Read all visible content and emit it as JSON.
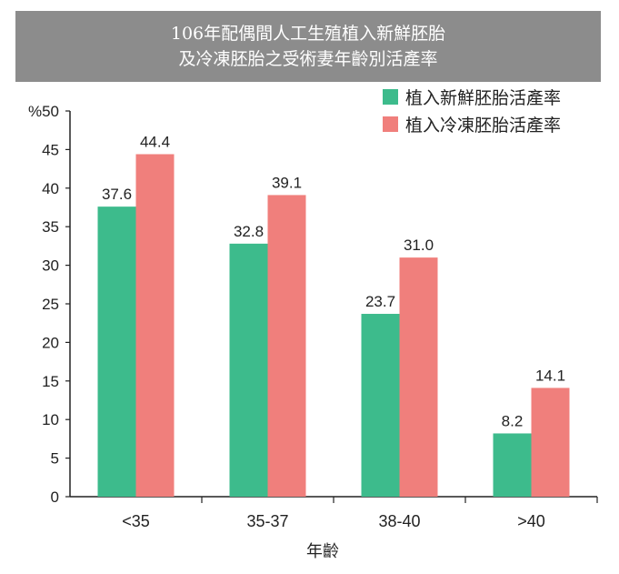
{
  "title": {
    "line1": "106年配偶間人工生殖植入新鮮胚胎",
    "line2": "及冷凍胚胎之受術妻年齡別活產率"
  },
  "colors": {
    "title_bg": "#8c8c8c",
    "fresh": "#3dbb8c",
    "frozen": "#f07f7c"
  },
  "chart_data": {
    "type": "bar",
    "title": "106年配偶間人工生殖植入新鮮胚胎及冷凍胚胎之受術妻年齡別活產率",
    "xlabel": "年齡",
    "ylabel": "%",
    "ylim": [
      0,
      50
    ],
    "yticks": [
      0,
      5,
      10,
      15,
      20,
      25,
      30,
      35,
      40,
      45,
      50
    ],
    "ytick_labels": [
      "0",
      "5",
      "10",
      "15",
      "20",
      "25",
      "30",
      "35",
      "40",
      "45",
      "%50"
    ],
    "categories": [
      "<35",
      "35-37",
      "38-40",
      ">40"
    ],
    "series": [
      {
        "name": "植入新鮮胚胎活產率",
        "values": [
          37.6,
          32.8,
          23.7,
          8.2
        ],
        "labels": [
          "37.6",
          "32.8",
          "23.7",
          "8.2"
        ]
      },
      {
        "name": "植入冷凍胚胎活產率",
        "values": [
          44.4,
          39.1,
          31.0,
          14.1
        ],
        "labels": [
          "44.4",
          "39.1",
          "31.0",
          "14.1"
        ]
      }
    ],
    "grid": false,
    "legend_position": "top-right"
  }
}
